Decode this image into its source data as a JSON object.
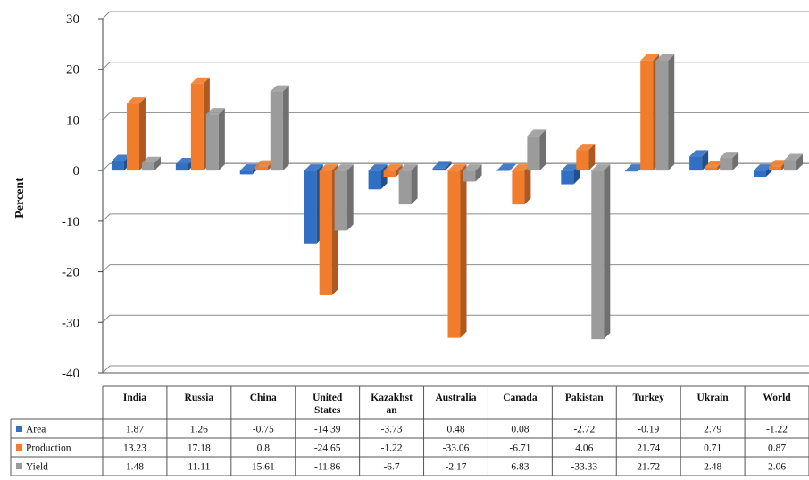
{
  "chart_data": {
    "type": "bar",
    "ylabel": "Percent",
    "ylim": [
      -40,
      30
    ],
    "yticks": [
      30,
      20,
      10,
      0,
      -10,
      -20,
      -30,
      -40
    ],
    "grid": true,
    "legend": "data-table-left",
    "categories": [
      [
        "India"
      ],
      [
        "Russia"
      ],
      [
        "China"
      ],
      [
        "United",
        "States"
      ],
      [
        "Kazakhst",
        "an"
      ],
      [
        "Australia"
      ],
      [
        "Canada"
      ],
      [
        "Pakistan"
      ],
      [
        "Turkey"
      ],
      [
        "Ukrain"
      ],
      [
        "World"
      ]
    ],
    "series": [
      {
        "name": "Area",
        "color": "#2f6fc4",
        "values": [
          1.87,
          1.26,
          -0.75,
          -14.39,
          -3.73,
          0.48,
          0.08,
          -2.72,
          -0.19,
          2.79,
          -1.22
        ],
        "labels": [
          "1.87",
          "1.26",
          "-0.75",
          "-14.39",
          "-3.73",
          "0.48",
          "0.08",
          "-2.72",
          "-0.19",
          "2.79",
          "-1.22"
        ]
      },
      {
        "name": "Production",
        "color": "#f07c2c",
        "values": [
          13.23,
          17.18,
          0.8,
          -24.65,
          -1.22,
          -33.06,
          -6.71,
          4.06,
          21.74,
          0.71,
          0.87
        ],
        "labels": [
          "13.23",
          "17.18",
          "0.8",
          "-24.65",
          "-1.22",
          "-33.06",
          "-6.71",
          "4.06",
          "21.74",
          "0.71",
          "0.87"
        ]
      },
      {
        "name": "Yield",
        "color": "#9b9b9b",
        "values": [
          1.48,
          11.11,
          15.61,
          -11.86,
          -6.7,
          -2.17,
          6.83,
          -33.33,
          21.72,
          2.48,
          2.06
        ],
        "labels": [
          "1.48",
          "11.11",
          "15.61",
          "-11.86",
          "-6.7",
          "-2.17",
          "6.83",
          "-33.33",
          "21.72",
          "2.48",
          "2.06"
        ]
      }
    ]
  }
}
